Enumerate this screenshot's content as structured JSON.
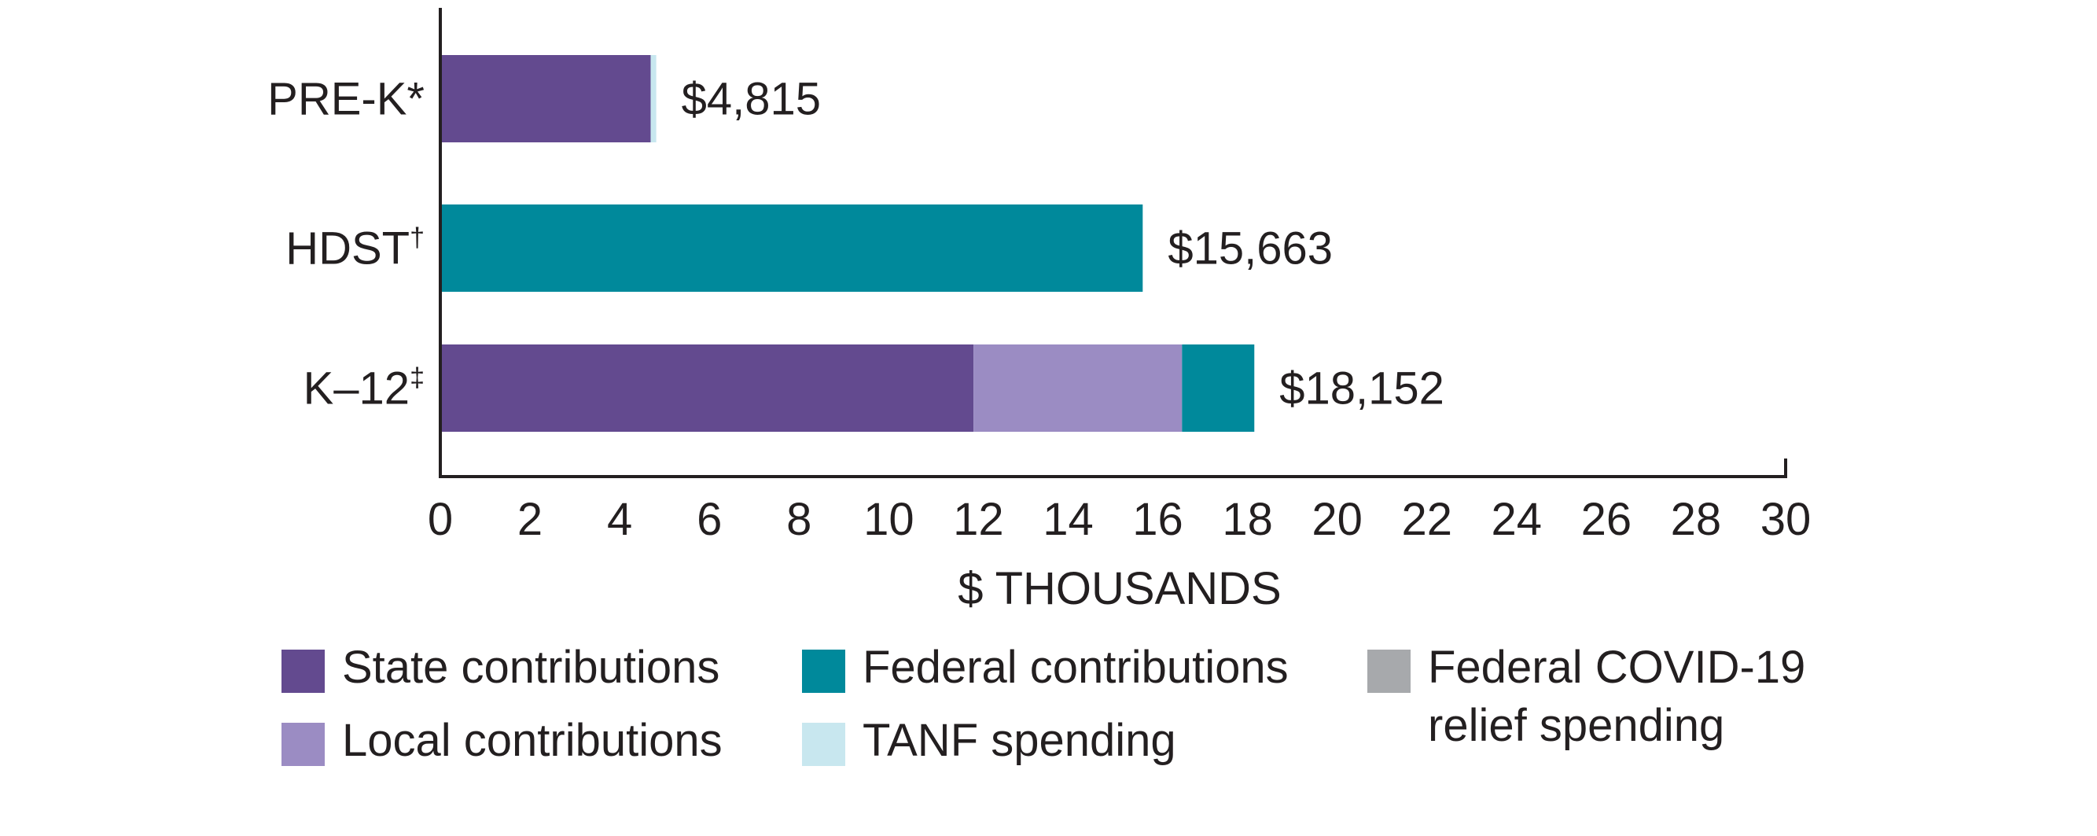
{
  "chart_data": {
    "type": "bar",
    "orientation": "horizontal",
    "stacked": true,
    "title": "",
    "xlabel": "$ THOUSANDS",
    "ylabel": "",
    "xlim": [
      0,
      30
    ],
    "x_ticks": [
      0,
      2,
      4,
      6,
      8,
      10,
      12,
      14,
      16,
      18,
      20,
      22,
      24,
      26,
      28,
      30
    ],
    "grid": false,
    "legend_position": "bottom",
    "categories": [
      {
        "name": "PRE-K",
        "marker": "*"
      },
      {
        "name": "HDST",
        "marker": "†"
      },
      {
        "name": "K–12",
        "marker": "‡"
      }
    ],
    "series": [
      {
        "name": "State contributions",
        "color": "#634a8f",
        "values": [
          4.69,
          0,
          11.89
        ]
      },
      {
        "name": "Local contributions",
        "color": "#9b8cc3",
        "values": [
          0,
          0,
          4.65
        ]
      },
      {
        "name": "Federal contributions",
        "color": "#00899b",
        "values": [
          0,
          15.663,
          1.612
        ]
      },
      {
        "name": "TANF spending",
        "color": "#c8e7ef",
        "values": [
          0.125,
          0,
          0
        ]
      },
      {
        "name": "Federal COVID-19 relief spending",
        "color": "#a7a9ac",
        "values": [
          0,
          0,
          0
        ]
      }
    ],
    "totals": [
      4.815,
      15.663,
      18.152
    ],
    "total_labels": [
      "$4,815",
      "$15,663",
      "$18,152"
    ]
  },
  "legend": [
    {
      "label": "State contributions",
      "color": "#634a8f"
    },
    {
      "label": "Federal contributions",
      "color": "#00899b"
    },
    {
      "label": "Federal COVID-19\nrelief spending",
      "color": "#a7a9ac"
    },
    {
      "label": "Local contributions",
      "color": "#9b8cc3"
    },
    {
      "label": "TANF spending",
      "color": "#c8e7ef"
    }
  ]
}
